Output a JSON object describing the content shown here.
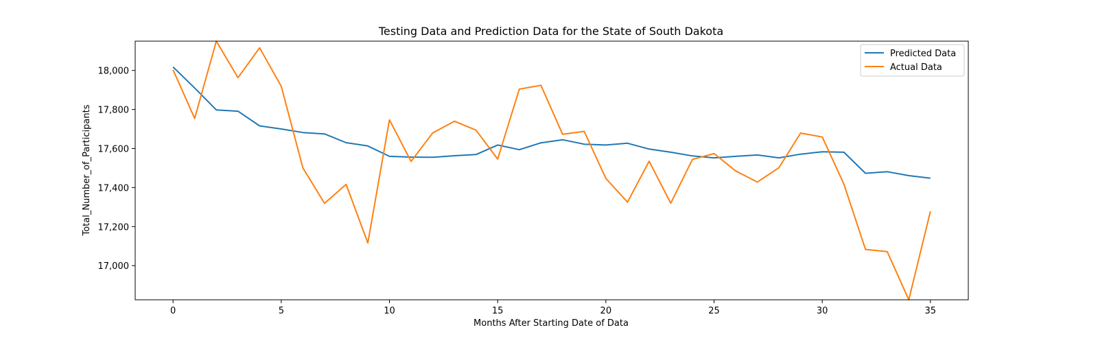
{
  "chart_data": {
    "type": "line",
    "title": "Testing Data and Prediction Data for the State of South Dakota",
    "xlabel": "Months After Starting Date of Data",
    "ylabel": "Total_Number_of_Participants",
    "xlim": [
      -1.75,
      36.75
    ],
    "ylim": [
      16825,
      18150
    ],
    "xticks": [
      0,
      5,
      10,
      15,
      20,
      25,
      30,
      35
    ],
    "xtick_labels": [
      "0",
      "5",
      "10",
      "15",
      "20",
      "25",
      "30",
      "35"
    ],
    "yticks": [
      17000,
      17200,
      17400,
      17600,
      17800,
      18000
    ],
    "ytick_labels": [
      "17,000",
      "17,200",
      "17,400",
      "17,600",
      "17,800",
      "18,000"
    ],
    "grid": false,
    "legend_position": "upper right",
    "x": [
      0,
      1,
      2,
      3,
      4,
      5,
      6,
      7,
      8,
      9,
      10,
      11,
      12,
      13,
      14,
      15,
      16,
      17,
      18,
      19,
      20,
      21,
      22,
      23,
      24,
      25,
      26,
      27,
      28,
      29,
      30,
      31,
      32,
      33,
      34,
      35
    ],
    "series": [
      {
        "name": "Predicted Data",
        "color": "#1f77b4",
        "values": [
          18018,
          17910,
          17798,
          17791,
          17716,
          17700,
          17682,
          17675,
          17630,
          17613,
          17560,
          17556,
          17555,
          17563,
          17569,
          17618,
          17594,
          17629,
          17645,
          17622,
          17618,
          17627,
          17597,
          17581,
          17562,
          17552,
          17560,
          17567,
          17552,
          17571,
          17583,
          17581,
          17473,
          17481,
          17461,
          17448
        ]
      },
      {
        "name": "Actual Data",
        "color": "#ff7f0e",
        "values": [
          18003,
          17754,
          18150,
          17963,
          18116,
          17919,
          17500,
          17319,
          17416,
          17116,
          17747,
          17534,
          17680,
          17740,
          17694,
          17546,
          17904,
          17924,
          17673,
          17688,
          17447,
          17325,
          17535,
          17320,
          17544,
          17574,
          17485,
          17428,
          17502,
          17679,
          17659,
          17418,
          17083,
          17072,
          16825,
          17278
        ]
      }
    ]
  }
}
